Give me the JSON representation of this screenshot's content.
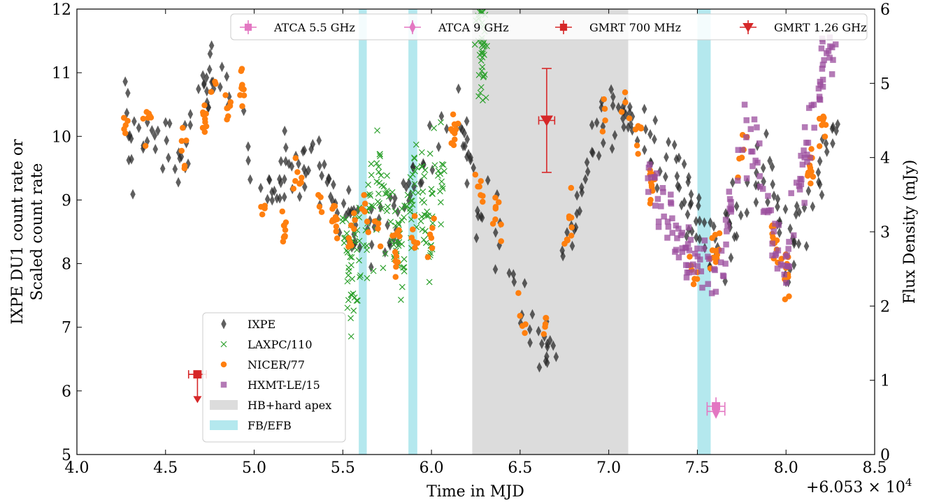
{
  "chart_data": {
    "type": "scatter",
    "title": "",
    "xlabel": "Time in MJD",
    "x_offset_label": "+6.053 × 10",
    "x_offset_exponent": "4",
    "ylabel_left_line1": "IXPE DU1 count rate or",
    "ylabel_left_line2": "Scaled count rate",
    "ylabel_right": "Flux Density (mJy)",
    "xlim": [
      4.0,
      8.5
    ],
    "ylim_left": [
      5,
      12
    ],
    "ylim_right": [
      0,
      6
    ],
    "x_ticks": [
      "4.0",
      "4.5",
      "5.0",
      "5.5",
      "6.0",
      "6.5",
      "7.0",
      "7.5",
      "8.0",
      "8.5"
    ],
    "y_ticks_left": [
      "5",
      "6",
      "7",
      "8",
      "9",
      "10",
      "11",
      "12"
    ],
    "y_ticks_right": [
      "0",
      "1",
      "2",
      "3",
      "4",
      "5",
      "6"
    ],
    "grid": false,
    "shaded_regions": [
      {
        "label": "HB+hard apex",
        "x": [
          6.23,
          7.11
        ],
        "color": "#dcdcdc"
      },
      {
        "label": "FB/EFB",
        "x": [
          5.59,
          5.635
        ],
        "color": "#b4e8ee"
      },
      {
        "label": "FB/EFB",
        "x": [
          5.87,
          5.92
        ],
        "color": "#b4e8ee"
      },
      {
        "label": "FB/EFB",
        "x": [
          7.5,
          7.575
        ],
        "color": "#b4e8ee"
      }
    ],
    "series": [
      {
        "name": "IXPE",
        "marker": "diamond",
        "color": "#2a2a2a",
        "trend_x": [
          4.27,
          4.4,
          4.5,
          4.6,
          4.65,
          4.7,
          4.8,
          4.9,
          5.0,
          5.1,
          5.2,
          5.3,
          5.4,
          5.5,
          5.6,
          5.7,
          5.8,
          5.9,
          6.0,
          6.1,
          6.15,
          6.25,
          6.35,
          6.45,
          6.55,
          6.6,
          6.65,
          6.7,
          6.8,
          6.9,
          7.0,
          7.1,
          7.2,
          7.3,
          7.4,
          7.5,
          7.6,
          7.7,
          7.8,
          7.9,
          8.0,
          8.1,
          8.2,
          8.3
        ],
        "trend_y": [
          10.1,
          10.0,
          9.8,
          9.7,
          10.0,
          10.6,
          10.9,
          10.8,
          9.4,
          9.2,
          9.4,
          9.5,
          9.2,
          8.8,
          8.5,
          8.7,
          8.6,
          9.2,
          9.6,
          10.3,
          10.5,
          9.1,
          8.7,
          8.0,
          6.9,
          6.6,
          6.7,
          7.3,
          8.7,
          10.0,
          10.3,
          10.4,
          9.9,
          9.5,
          9.3,
          8.8,
          8.2,
          8.5,
          9.3,
          9.6,
          8.0,
          8.6,
          9.7,
          10.3
        ],
        "count": 360
      },
      {
        "name": "LAXPC/110",
        "marker": "x",
        "color": "#2ca02c",
        "trend_x": [
          5.52,
          5.55,
          5.6,
          5.65,
          5.7,
          5.75,
          5.8,
          5.85,
          5.9,
          5.95,
          6.0,
          6.05,
          6.27,
          6.29
        ],
        "trend_y": [
          8.2,
          7.9,
          8.4,
          8.8,
          9.3,
          8.9,
          8.3,
          8.1,
          9.3,
          9.2,
          8.5,
          9.4,
          11.5,
          11.3
        ],
        "count": 230
      },
      {
        "name": "NICER/77",
        "marker": "circle",
        "color": "#ff7f0e",
        "trend_x": [
          4.27,
          4.4,
          4.6,
          4.72,
          4.78,
          4.85,
          4.93,
          5.05,
          5.17,
          5.24,
          5.38,
          5.45,
          5.55,
          5.62,
          5.7,
          5.8,
          5.9,
          6.0,
          6.13,
          6.27,
          6.37,
          6.5,
          6.65,
          6.78,
          6.98,
          7.1,
          7.17,
          7.24,
          7.48,
          7.6,
          7.75,
          7.93,
          8.0,
          8.13,
          8.2
        ],
        "trend_y": [
          10.2,
          10.2,
          9.7,
          10.3,
          10.8,
          10.5,
          10.9,
          8.7,
          8.4,
          9.5,
          8.9,
          8.8,
          8.4,
          9.0,
          8.5,
          8.3,
          8.4,
          8.4,
          10.1,
          9.2,
          8.8,
          7.1,
          7.0,
          8.7,
          10.5,
          10.5,
          10.2,
          9.2,
          7.9,
          8.1,
          10.0,
          8.3,
          7.8,
          9.5,
          10.2
        ],
        "count": 260
      },
      {
        "name": "HXMT-LE/15",
        "marker": "square",
        "color": "#9b4d9e",
        "trend_x": [
          7.22,
          7.3,
          7.37,
          7.43,
          7.5,
          7.56,
          7.62,
          7.7,
          7.76,
          7.83,
          7.92,
          8.0,
          8.08,
          8.16,
          8.22,
          8.29
        ],
        "trend_y": [
          9.4,
          9.1,
          8.5,
          8.2,
          8.1,
          7.9,
          8.0,
          8.8,
          10.0,
          9.8,
          8.4,
          7.9,
          9.4,
          10.4,
          11.1,
          11.3
        ],
        "count": 170
      },
      {
        "name": "ATCA 5.5 GHz",
        "marker": "square",
        "color": "#e377c2",
        "axis": "right",
        "points": [
          {
            "x": 7.605,
            "y": 0.65,
            "xerr": 0.05,
            "yerr": 0.12
          }
        ]
      },
      {
        "name": "ATCA 9 GHz",
        "marker": "diamond",
        "color": "#e377c2",
        "axis": "right",
        "points": [
          {
            "x": 7.605,
            "y": 0.58,
            "xerr": 0.05,
            "yerr": 0.08
          }
        ]
      },
      {
        "name": "GMRT 700 MHz",
        "marker": "square",
        "color": "#d62728",
        "axis": "right",
        "points": [
          {
            "x": 4.68,
            "y": 1.08,
            "xerr": 0.05,
            "upper_limit": true
          }
        ]
      },
      {
        "name": "GMRT 1.26 GHz",
        "marker": "triangle-down",
        "color": "#d62728",
        "axis": "right",
        "points": [
          {
            "x": 6.65,
            "y": 4.5,
            "xerr": 0.045,
            "yerr_low": 0.7,
            "yerr_high": 0.7
          }
        ]
      }
    ],
    "legend_top": [
      "ATCA 5.5 GHz",
      "ATCA 9 GHz",
      "GMRT 700 MHz",
      "GMRT 1.26 GHz"
    ],
    "legend_bottom": [
      "IXPE",
      "LAXPC/110",
      "NICER/77",
      "HXMT-LE/15",
      "HB+hard apex",
      "FB/EFB"
    ],
    "legend_top_placement": "upper-right",
    "legend_bottom_placement": "lower-left"
  }
}
